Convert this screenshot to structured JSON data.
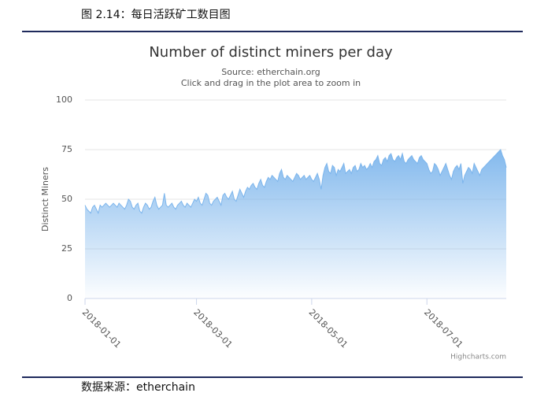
{
  "header": {
    "title": "图 2.14：每日活跃矿工数目图"
  },
  "footer": {
    "source": "数据来源：etherchain"
  },
  "chart_data": {
    "type": "area",
    "title": "Number of distinct miners per day",
    "subtitle": "Source: etherchain.org",
    "subtitle2": "Click and drag in the plot area to zoom in",
    "y_label": "Distinct Miners",
    "credits": "Highcharts.com",
    "ylim": [
      0,
      100
    ],
    "yticks": [
      0,
      25,
      50,
      75,
      100
    ],
    "grid": true,
    "xticks": [
      "2018-01-01",
      "2018-03-01",
      "2018-05-01",
      "2018-07-01"
    ],
    "x": [
      "2018-01-01",
      "2018-01-02",
      "2018-01-03",
      "2018-01-04",
      "2018-01-05",
      "2018-01-06",
      "2018-01-07",
      "2018-01-08",
      "2018-01-09",
      "2018-01-10",
      "2018-01-11",
      "2018-01-12",
      "2018-01-13",
      "2018-01-14",
      "2018-01-15",
      "2018-01-16",
      "2018-01-17",
      "2018-01-18",
      "2018-01-19",
      "2018-01-20",
      "2018-01-21",
      "2018-01-22",
      "2018-01-23",
      "2018-01-24",
      "2018-01-25",
      "2018-01-26",
      "2018-01-27",
      "2018-01-28",
      "2018-01-29",
      "2018-01-30",
      "2018-01-31",
      "2018-02-01",
      "2018-02-02",
      "2018-02-03",
      "2018-02-04",
      "2018-02-05",
      "2018-02-06",
      "2018-02-07",
      "2018-02-08",
      "2018-02-09",
      "2018-02-10",
      "2018-02-11",
      "2018-02-12",
      "2018-02-13",
      "2018-02-14",
      "2018-02-15",
      "2018-02-16",
      "2018-02-17",
      "2018-02-18",
      "2018-02-19",
      "2018-02-20",
      "2018-02-21",
      "2018-02-22",
      "2018-02-23",
      "2018-02-24",
      "2018-02-25",
      "2018-02-26",
      "2018-02-27",
      "2018-02-28",
      "2018-03-01",
      "2018-03-02",
      "2018-03-03",
      "2018-03-04",
      "2018-03-05",
      "2018-03-06",
      "2018-03-07",
      "2018-03-08",
      "2018-03-09",
      "2018-03-10",
      "2018-03-11",
      "2018-03-12",
      "2018-03-13",
      "2018-03-14",
      "2018-03-15",
      "2018-03-16",
      "2018-03-17",
      "2018-03-18",
      "2018-03-19",
      "2018-03-20",
      "2018-03-21",
      "2018-03-22",
      "2018-03-23",
      "2018-03-24",
      "2018-03-25",
      "2018-03-26",
      "2018-03-27",
      "2018-03-28",
      "2018-03-29",
      "2018-03-30",
      "2018-03-31",
      "2018-04-01",
      "2018-04-02",
      "2018-04-03",
      "2018-04-04",
      "2018-04-05",
      "2018-04-06",
      "2018-04-07",
      "2018-04-08",
      "2018-04-09",
      "2018-04-10",
      "2018-04-11",
      "2018-04-12",
      "2018-04-13",
      "2018-04-14",
      "2018-04-15",
      "2018-04-16",
      "2018-04-17",
      "2018-04-18",
      "2018-04-19",
      "2018-04-20",
      "2018-04-21",
      "2018-04-22",
      "2018-04-23",
      "2018-04-24",
      "2018-04-25",
      "2018-04-26",
      "2018-04-27",
      "2018-04-28",
      "2018-04-29",
      "2018-04-30",
      "2018-05-01",
      "2018-05-02",
      "2018-05-03",
      "2018-05-04",
      "2018-05-05",
      "2018-05-06",
      "2018-05-07",
      "2018-05-08",
      "2018-05-09",
      "2018-05-10",
      "2018-05-11",
      "2018-05-12",
      "2018-05-13",
      "2018-05-14",
      "2018-05-15",
      "2018-05-16",
      "2018-05-17",
      "2018-05-18",
      "2018-05-19",
      "2018-05-20",
      "2018-05-21",
      "2018-05-22",
      "2018-05-23",
      "2018-05-24",
      "2018-05-25",
      "2018-05-26",
      "2018-05-27",
      "2018-05-28",
      "2018-05-29",
      "2018-05-30",
      "2018-05-31",
      "2018-06-01",
      "2018-06-02",
      "2018-06-03",
      "2018-06-04",
      "2018-06-05",
      "2018-06-06",
      "2018-06-07",
      "2018-06-08",
      "2018-06-09",
      "2018-06-10",
      "2018-06-11",
      "2018-06-12",
      "2018-06-13",
      "2018-06-14",
      "2018-06-15",
      "2018-06-16",
      "2018-06-17",
      "2018-06-18",
      "2018-06-19",
      "2018-06-20",
      "2018-06-21",
      "2018-06-22",
      "2018-06-23",
      "2018-06-24",
      "2018-06-25",
      "2018-06-26",
      "2018-06-27",
      "2018-06-28",
      "2018-06-29",
      "2018-06-30",
      "2018-07-01",
      "2018-07-02",
      "2018-07-03",
      "2018-07-04",
      "2018-07-05",
      "2018-07-06",
      "2018-07-07",
      "2018-07-08",
      "2018-07-09",
      "2018-07-10",
      "2018-07-11",
      "2018-07-12",
      "2018-07-13",
      "2018-07-14",
      "2018-07-15",
      "2018-07-16",
      "2018-07-17",
      "2018-07-18",
      "2018-07-19",
      "2018-07-20",
      "2018-07-21",
      "2018-07-22",
      "2018-07-23",
      "2018-07-24",
      "2018-07-25",
      "2018-07-26",
      "2018-07-27",
      "2018-07-28",
      "2018-07-29",
      "2018-07-30",
      "2018-07-31",
      "2018-08-01",
      "2018-08-02",
      "2018-08-03",
      "2018-08-04",
      "2018-08-05",
      "2018-08-06",
      "2018-08-07",
      "2018-08-08",
      "2018-08-09",
      "2018-08-10",
      "2018-08-11",
      "2018-08-12"
    ],
    "series": [
      {
        "name": "Distinct Miners",
        "color": "#7cb5ec",
        "values": [
          47,
          45,
          44,
          43,
          46,
          47,
          45,
          43,
          47,
          46,
          47,
          48,
          47,
          46,
          47,
          48,
          47,
          46,
          48,
          47,
          46,
          45,
          47,
          50,
          49,
          46,
          45,
          47,
          48,
          44,
          43,
          46,
          48,
          47,
          45,
          46,
          49,
          51,
          47,
          45,
          46,
          47,
          53,
          47,
          46,
          47,
          48,
          46,
          45,
          47,
          48,
          49,
          47,
          46,
          48,
          47,
          46,
          48,
          50,
          49,
          51,
          48,
          47,
          50,
          53,
          52,
          48,
          47,
          49,
          50,
          51,
          49,
          47,
          52,
          53,
          51,
          50,
          52,
          54,
          50,
          49,
          52,
          55,
          53,
          51,
          54,
          56,
          55,
          57,
          58,
          56,
          55,
          58,
          60,
          57,
          56,
          59,
          61,
          60,
          62,
          61,
          60,
          59,
          63,
          65,
          61,
          60,
          62,
          61,
          60,
          59,
          61,
          63,
          62,
          60,
          61,
          62,
          60,
          61,
          62,
          60,
          59,
          61,
          63,
          60,
          55,
          62,
          66,
          68,
          64,
          63,
          67,
          66,
          62,
          65,
          64,
          66,
          68,
          63,
          64,
          65,
          63,
          66,
          67,
          64,
          65,
          68,
          66,
          67,
          65,
          66,
          68,
          66,
          69,
          70,
          72,
          68,
          67,
          70,
          71,
          69,
          72,
          73,
          70,
          69,
          71,
          72,
          70,
          73,
          69,
          68,
          70,
          71,
          72,
          70,
          69,
          68,
          71,
          72,
          70,
          69,
          68,
          65,
          63,
          64,
          68,
          67,
          65,
          62,
          64,
          66,
          68,
          65,
          62,
          60,
          64,
          66,
          67,
          65,
          68,
          58,
          62,
          64,
          66,
          65,
          63,
          68,
          66,
          64,
          62,
          65,
          66,
          67,
          68,
          69,
          70,
          71,
          72,
          73,
          74,
          75,
          72,
          70,
          66
        ]
      }
    ]
  }
}
